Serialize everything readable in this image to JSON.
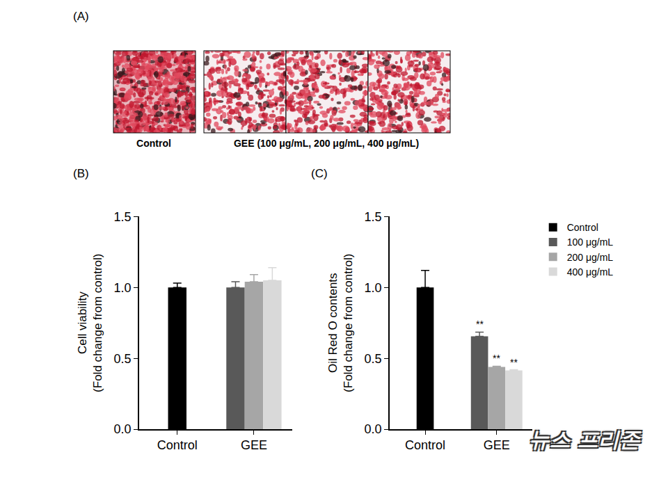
{
  "panel_a": {
    "label": "(A)",
    "groups": [
      {
        "label": "Control",
        "images": 1
      },
      {
        "label": "GEE (100 μg/mL, 200 μg/mL, 400 μg/mL)",
        "images": 3
      }
    ]
  },
  "chart_data": [
    {
      "panel": "(B)",
      "type": "bar",
      "categories": [
        "Control",
        "GEE"
      ],
      "y_label": [
        "Cell viability",
        "(Fold change from control)"
      ],
      "ylim": [
        0,
        1.5
      ],
      "yticks": [
        {
          "value": 0,
          "label": "0.0"
        },
        {
          "value": 0.5,
          "label": "0.5"
        },
        {
          "value": 1,
          "label": "1.0"
        },
        {
          "value": 1.5,
          "label": "1.5"
        }
      ],
      "grid": false,
      "series": [
        {
          "color": "#000000",
          "values": [
            1.0,
            null
          ],
          "errors": [
            0.03,
            null
          ]
        },
        {
          "color": "#595959",
          "values": [
            null,
            1.0
          ],
          "errors": [
            null,
            0.04
          ]
        },
        {
          "color": "#a6a6a6",
          "values": [
            null,
            1.04
          ],
          "errors": [
            null,
            0.05
          ]
        },
        {
          "color": "#d9d9d9",
          "values": [
            null,
            1.05
          ],
          "errors": [
            null,
            0.09
          ]
        }
      ]
    },
    {
      "panel": "(C)",
      "type": "bar",
      "categories": [
        "Control",
        "GEE"
      ],
      "y_label": [
        "Oil Red O contents",
        "(Fold change from control)"
      ],
      "ylim": [
        0,
        1.5
      ],
      "yticks": [
        {
          "value": 0,
          "label": "0.0"
        },
        {
          "value": 0.5,
          "label": "0.5"
        },
        {
          "value": 1,
          "label": "1.0"
        },
        {
          "value": 1.5,
          "label": "1.5"
        }
      ],
      "grid": false,
      "legend": "top right",
      "series": [
        {
          "name": "Control",
          "color": "#000000",
          "values": [
            1.0,
            null
          ],
          "errors": [
            0.12,
            null
          ],
          "annotations": [
            null,
            null
          ]
        },
        {
          "name": "100 μg/mL",
          "color": "#595959",
          "values": [
            null,
            0.655
          ],
          "errors": [
            null,
            0.03
          ],
          "annotations": [
            null,
            "**"
          ]
        },
        {
          "name": "200 μg/mL",
          "color": "#a6a6a6",
          "values": [
            null,
            0.44
          ],
          "errors": [
            null,
            0.005
          ],
          "annotations": [
            null,
            "**"
          ]
        },
        {
          "name": "400 μg/mL",
          "color": "#d9d9d9",
          "values": [
            null,
            0.415
          ],
          "errors": [
            null,
            0.005
          ],
          "annotations": [
            null,
            "**"
          ]
        }
      ]
    }
  ],
  "watermark": "뉴스 프리존"
}
